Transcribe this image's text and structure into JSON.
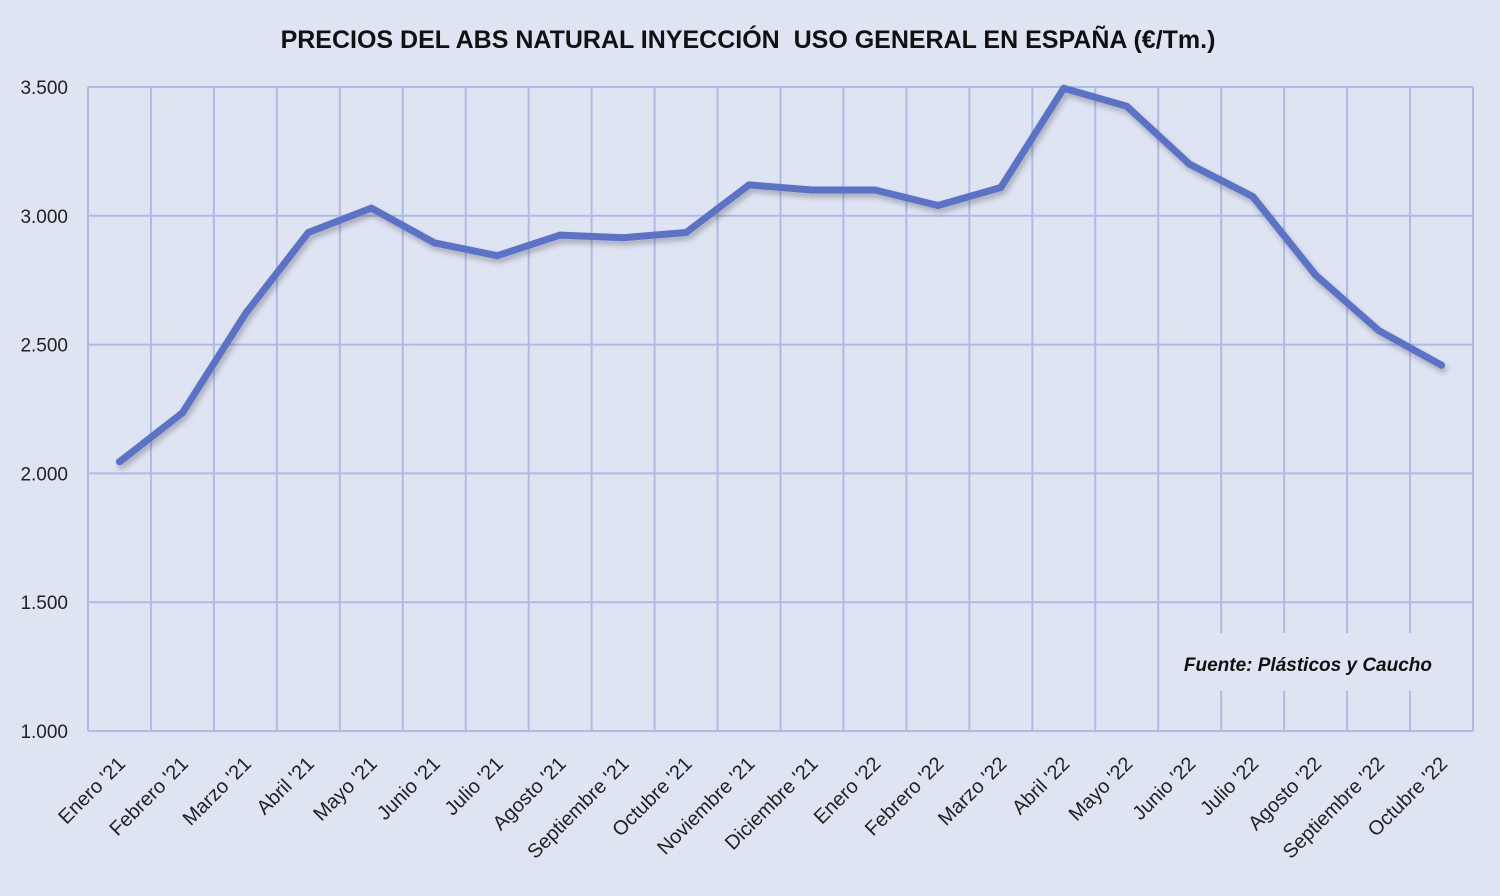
{
  "chart_data": {
    "type": "line",
    "title": "PRECIOS DEL ABS NATURAL INYECCIÓN  USO GENERAL EN ESPAÑA (€/Tm.)",
    "xlabel": "",
    "ylabel": "",
    "categories": [
      "Enero '21",
      "Febrero '21",
      "Marzo '21",
      "Abril '21",
      "Mayo '21",
      "Junio '21",
      "Julio '21",
      "Agosto '21",
      "Septiembre '21",
      "Octubre '21",
      "Noviembre '21",
      "Diciembre '21",
      "Enero '22",
      "Febrero '22",
      "Marzo '22",
      "Abril '22",
      "Mayo '22",
      "Junio '22",
      "Julio '22",
      "Agosto '22",
      "Septiembre '22",
      "Octubre '22"
    ],
    "series": [
      {
        "values": [
          2045,
          2235,
          2620,
          2935,
          3030,
          2895,
          2845,
          2925,
          2915,
          2935,
          3120,
          3100,
          3100,
          3040,
          3110,
          3495,
          3425,
          3200,
          3075,
          2770,
          2555,
          2420
        ],
        "color": "#5b72c7"
      }
    ],
    "ylim": [
      1000,
      3500
    ],
    "yticks": [
      1000,
      1500,
      2000,
      2500,
      3000,
      3500
    ],
    "ytick_labels": [
      "1.000",
      "1.500",
      "2.000",
      "2.500",
      "3.000",
      "3.500"
    ],
    "grid": true,
    "annotation": "Fuente: Plásticos y Caucho",
    "colors": {
      "background": "#dfe4f3",
      "grid": "#aebbe6",
      "line": "#5b72c7"
    }
  }
}
